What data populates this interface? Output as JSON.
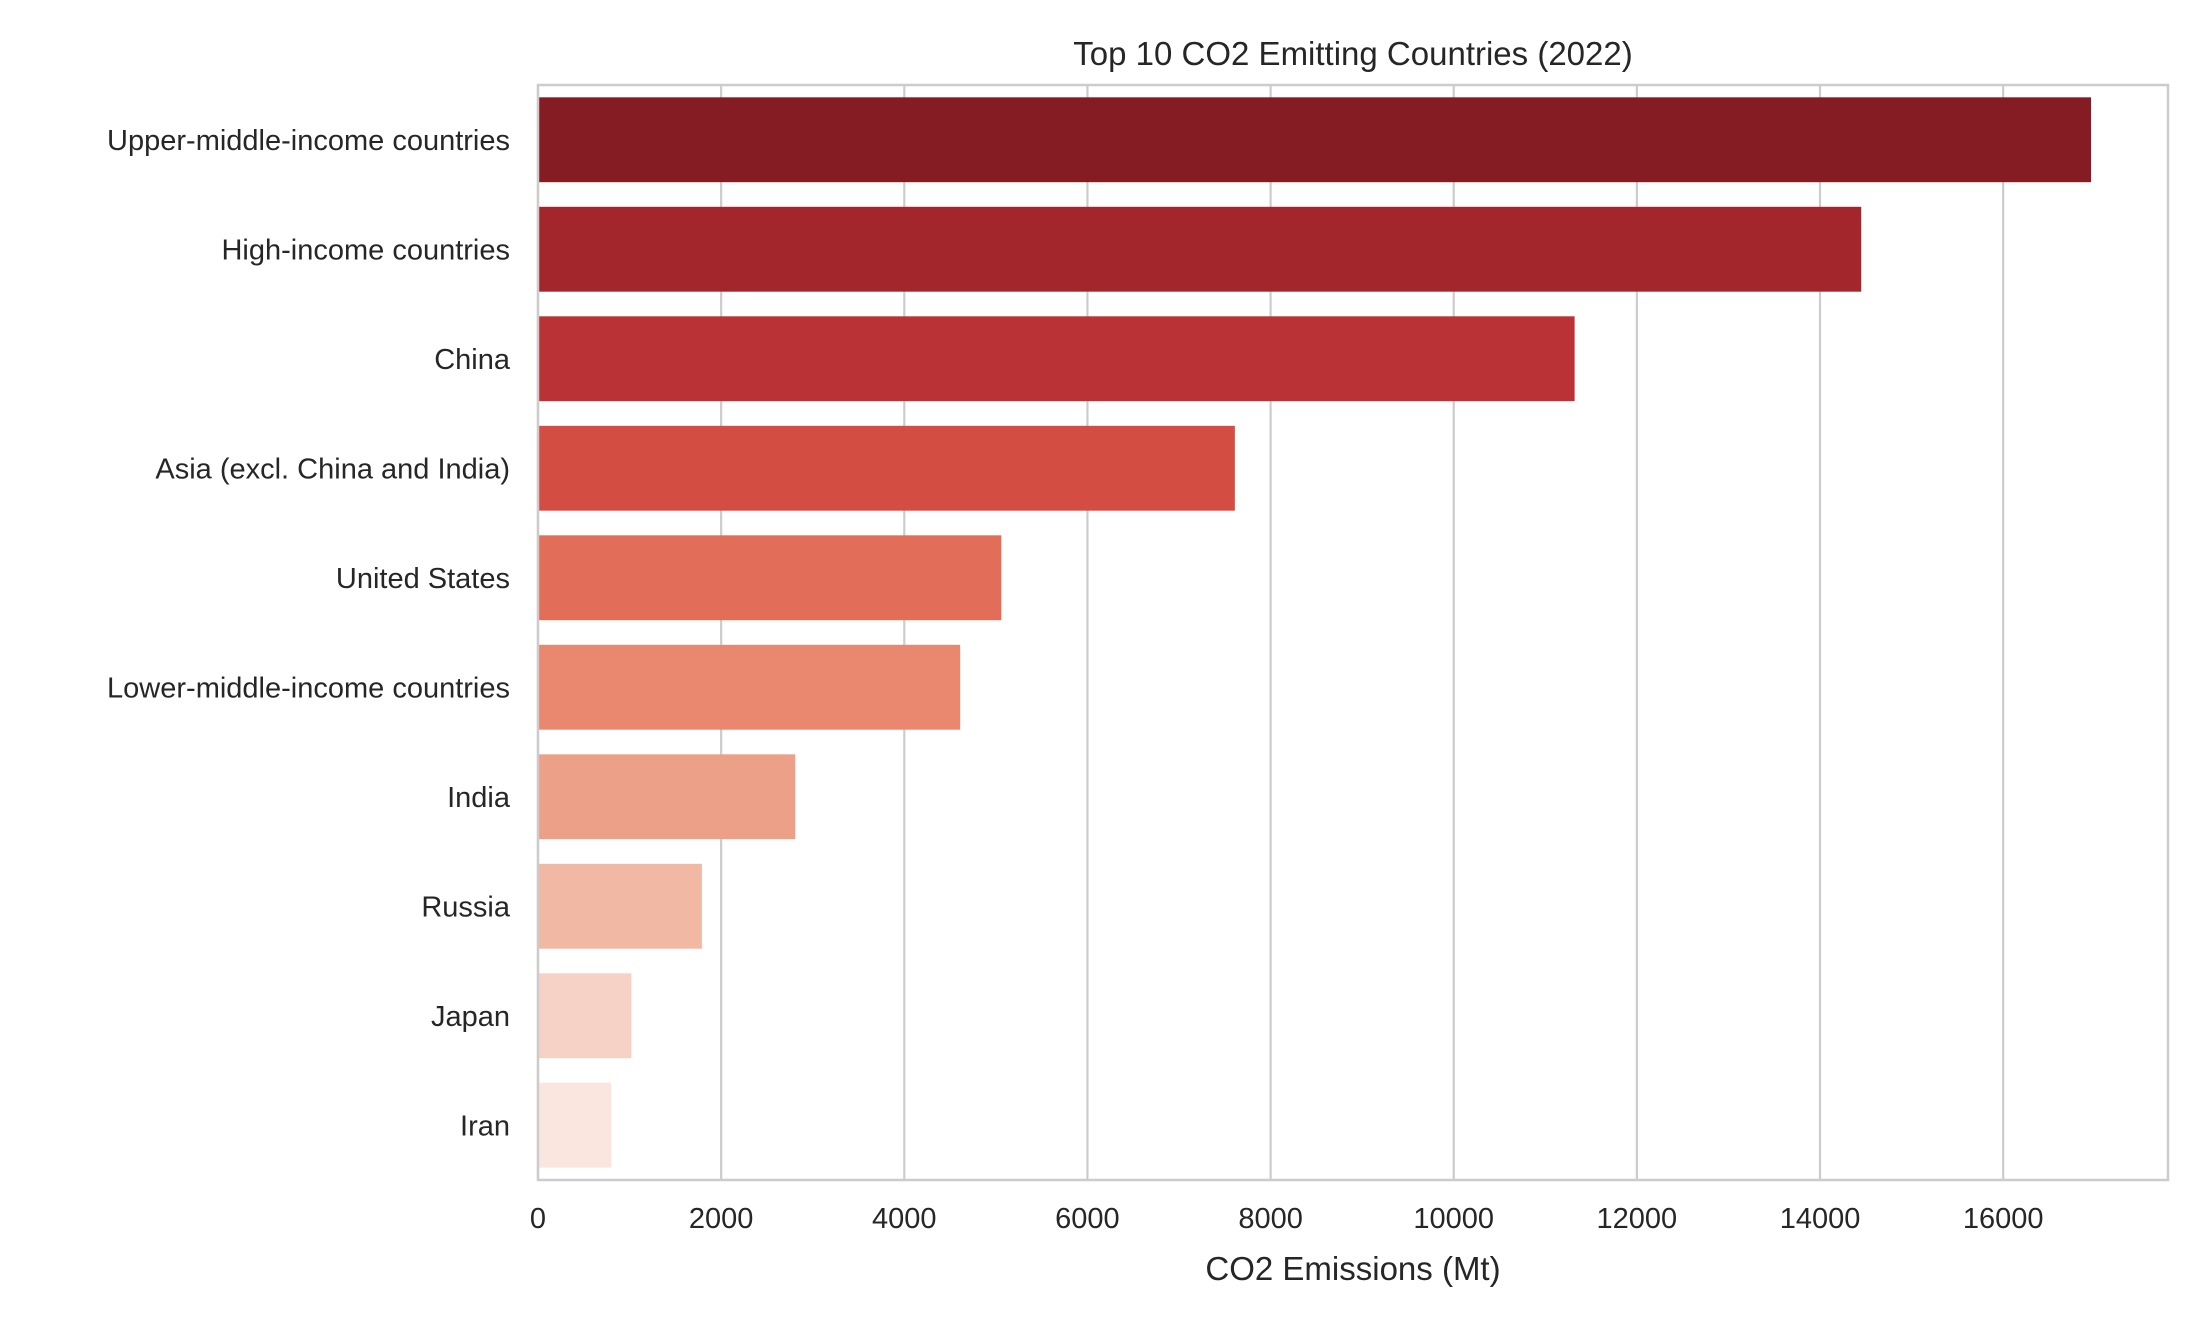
{
  "chart_data": {
    "type": "bar",
    "orientation": "horizontal",
    "title": "Top 10 CO2 Emitting Countries (2022)",
    "xlabel": "CO2 Emissions (Mt)",
    "ylabel": "",
    "xlim": [
      0,
      17800
    ],
    "xticks": [
      0,
      2000,
      4000,
      6000,
      8000,
      10000,
      12000,
      14000,
      16000
    ],
    "xtick_labels": [
      "0",
      "2000",
      "4000",
      "6000",
      "8000",
      "10000",
      "12000",
      "14000",
      "16000"
    ],
    "grid": "vertical",
    "legend": "none",
    "categories": [
      "Upper-middle-income countries",
      "High-income countries",
      "China",
      "Asia (excl. China and India)",
      "United States",
      "Lower-middle-income countries",
      "India",
      "Russia",
      "Japan",
      "Iran"
    ],
    "values": [
      16960,
      14450,
      11320,
      7610,
      5060,
      4610,
      2810,
      1790,
      1020,
      800
    ],
    "colors": [
      "#851c24",
      "#a3262d",
      "#bb3236",
      "#d44d43",
      "#e26d58",
      "#e9876f",
      "#eda088",
      "#f1b8a4",
      "#f5d2c5",
      "#fae6de"
    ]
  }
}
